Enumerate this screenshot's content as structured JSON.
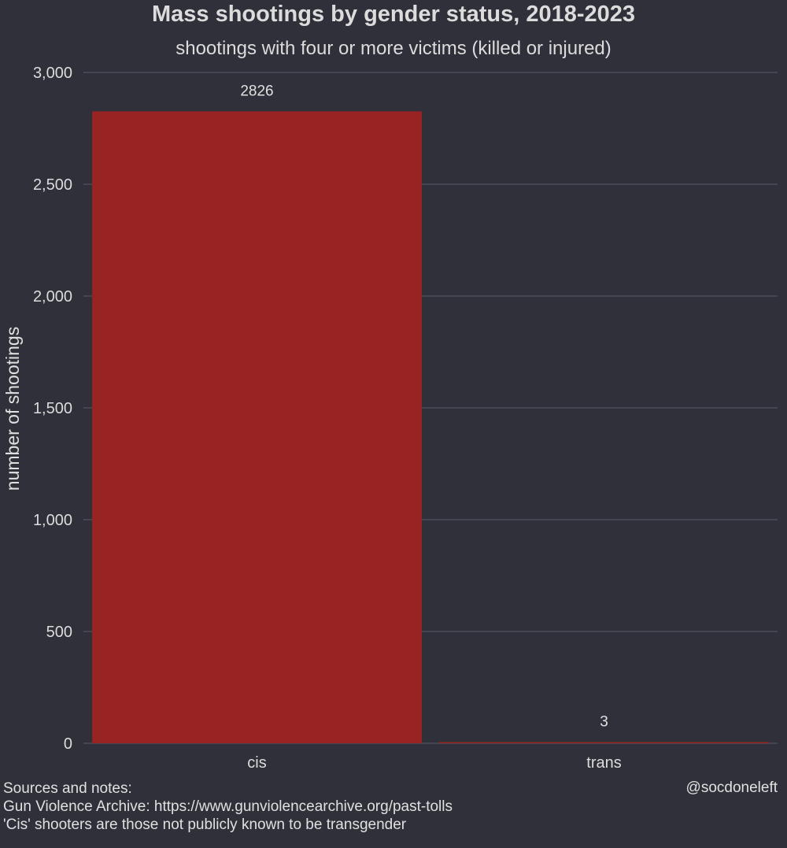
{
  "chart_data": {
    "type": "bar",
    "title": "Mass shootings by gender status, 2018-2023",
    "subtitle": "shootings with four or more victims (killed or injured)",
    "xlabel": "",
    "ylabel": "number of shootings",
    "categories": [
      "cis",
      "trans"
    ],
    "values": [
      2826,
      3
    ],
    "data_labels": [
      "2826",
      "3"
    ],
    "ylim": [
      0,
      3000
    ],
    "yticks": [
      0,
      500,
      1000,
      1500,
      2000,
      2500,
      3000
    ],
    "ytick_labels": [
      "0",
      "500",
      "1,000",
      "1,500",
      "2,000",
      "2,500",
      "3,000"
    ],
    "grid": true,
    "legend": "none",
    "colors": {
      "background": "#30303a",
      "bar": "#982323",
      "grid": "#4c4c5a",
      "text": "#e6e6e6"
    }
  },
  "footer": {
    "heading": "Sources and notes:",
    "line1": "Gun Violence Archive: https://www.gunviolencearchive.org/past-tolls",
    "line2": "'Cis' shooters are those not publicly known to be transgender"
  },
  "credit": "@socdoneleft"
}
